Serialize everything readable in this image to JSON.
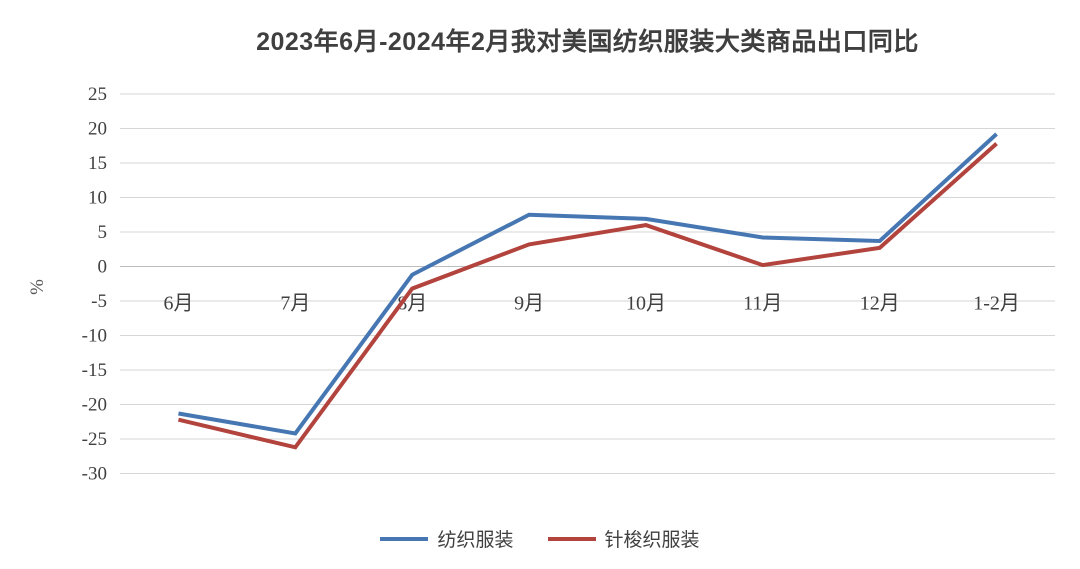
{
  "chart_data": {
    "type": "line",
    "title": "2023年6月-2024年2月我对美国纺织服装大类商品出口同比",
    "ylabel": "%",
    "xlabel": "",
    "categories": [
      "6月",
      "7月",
      "8月",
      "9月",
      "10月",
      "11月",
      "12月",
      "1-2月"
    ],
    "series": [
      {
        "name": "纺织服装",
        "color": "#4677b2",
        "values": [
          -21.3,
          -24.2,
          -1.2,
          7.5,
          6.9,
          4.2,
          3.7,
          19.2
        ]
      },
      {
        "name": "针梭织服装",
        "color": "#b2433d",
        "values": [
          -22.2,
          -26.2,
          -3.2,
          3.2,
          6.0,
          0.2,
          2.7,
          17.8
        ]
      }
    ],
    "ylim": [
      -30,
      25
    ],
    "ytick_step": 5,
    "grid": true,
    "legend_position": "bottom",
    "colors": {
      "gridline": "#d6d6d6",
      "zero_axis": "#bdbdbd",
      "tick_text": "#404040",
      "title_text": "#3f3f3f"
    }
  }
}
